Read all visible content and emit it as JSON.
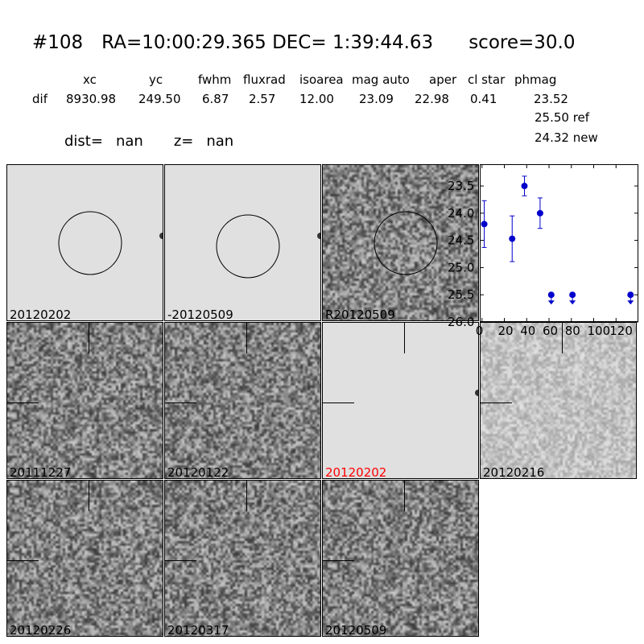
{
  "header": {
    "id": "#108",
    "ra": "RA=10:00:29.365",
    "dec": "DEC= 1:39:44.63",
    "score": "score=30.0"
  },
  "table": {
    "columns": [
      "xc",
      "yc",
      "fwhm",
      "fluxrad",
      "isoarea",
      "mag auto",
      "aper",
      "cl star",
      "phmag"
    ],
    "row_label": "dif",
    "values": [
      "8930.98",
      "249.50",
      "6.87",
      "2.57",
      "12.00",
      "23.09",
      "22.98",
      "0.41",
      "23.52"
    ],
    "ref_mag": "25.50 ref",
    "new_mag": "24.32 new"
  },
  "dist_label": "dist=",
  "dist_value": "nan",
  "z_label": "z=",
  "z_value": "nan",
  "panels": [
    {
      "label": "20120202",
      "color": "#000000"
    },
    {
      "label": "-20120509",
      "color": "#000000"
    },
    {
      "label": "R20120509",
      "color": "#000000"
    },
    {
      "label": "20111227",
      "color": "#000000"
    },
    {
      "label": "20120122",
      "color": "#000000"
    },
    {
      "label": "20120202",
      "color": "#ff0000"
    },
    {
      "label": "20120216",
      "color": "#000000"
    },
    {
      "label": "20120226",
      "color": "#000000"
    },
    {
      "label": "20120317",
      "color": "#000000"
    },
    {
      "label": "20120509",
      "color": "#000000"
    }
  ],
  "chart_data": {
    "type": "scatter",
    "title": "",
    "xlabel": "",
    "ylabel": "",
    "xlim": [
      -2,
      140
    ],
    "ylim": [
      26.0,
      23.1
    ],
    "y_inverted": true,
    "xticks": [
      "0",
      "20",
      "40",
      "60",
      "80",
      "100",
      "120"
    ],
    "xtick_values": [
      0,
      20,
      40,
      60,
      80,
      100,
      120
    ],
    "yticks": [
      "23.5",
      "24.0",
      "24.5",
      "25.0",
      "25.5",
      "26.0"
    ],
    "ytick_values": [
      23.5,
      24.0,
      24.5,
      25.0,
      25.5,
      26.0
    ],
    "color": "#0000cc",
    "points": [
      {
        "x": 2,
        "y": 24.2,
        "err": 0.43,
        "upper_limit": false
      },
      {
        "x": 27,
        "y": 24.47,
        "err": 0.42,
        "upper_limit": false
      },
      {
        "x": 38,
        "y": 23.5,
        "err": 0.18,
        "upper_limit": false
      },
      {
        "x": 52,
        "y": 24.0,
        "err": 0.28,
        "upper_limit": false
      },
      {
        "x": 62,
        "y": 25.5,
        "err": 0,
        "upper_limit": true
      },
      {
        "x": 81,
        "y": 25.5,
        "err": 0,
        "upper_limit": true
      },
      {
        "x": 133,
        "y": 25.5,
        "err": 0,
        "upper_limit": true
      }
    ]
  }
}
